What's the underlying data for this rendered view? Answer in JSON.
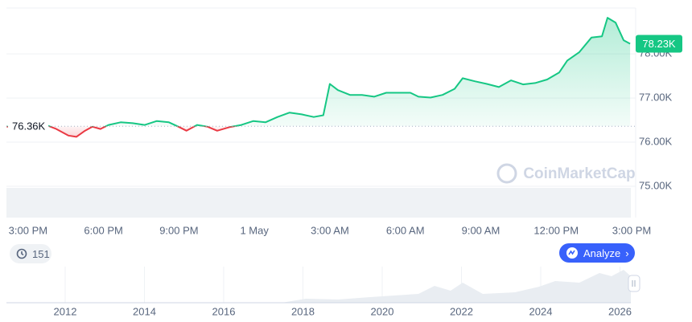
{
  "chart_data": {
    "type": "line",
    "x": [
      -0.86,
      -0.48,
      0.8,
      1.12,
      1.6,
      1.92,
      2.24,
      2.56,
      2.88,
      3.2,
      3.68,
      4.16,
      4.64,
      5.12,
      5.6,
      5.98,
      6.3,
      6.72,
      7.14,
      7.52,
      8,
      8.48,
      8.96,
      9.44,
      9.92,
      10.4,
      10.88,
      11.36,
      11.74,
      12,
      12.32,
      12.8,
      13.28,
      13.76,
      14.24,
      14.72,
      15.2,
      15.52,
      16,
      16.48,
      16.96,
      17.28,
      17.76,
      18.24,
      18.72,
      19.2,
      19.68,
      20.16,
      20.64,
      21.12,
      21.44,
      21.92,
      22.4,
      22.82,
      23.04,
      23.36,
      23.68,
      23.94
    ],
    "series": [
      {
        "color": "#16c784",
        "negative_color": "#ea3943",
        "values": [
          76360,
          76300,
          76370,
          76300,
          76150,
          76120,
          76250,
          76350,
          76300,
          76390,
          76450,
          76430,
          76390,
          76480,
          76450,
          76350,
          76260,
          76390,
          76350,
          76260,
          76340,
          76390,
          76480,
          76450,
          76570,
          76670,
          76630,
          76570,
          76610,
          77320,
          77180,
          77070,
          77070,
          77030,
          77120,
          77120,
          77120,
          77030,
          77010,
          77070,
          77210,
          77450,
          77380,
          77320,
          77250,
          77400,
          77310,
          77340,
          77420,
          77580,
          77850,
          78040,
          78370,
          78400,
          78820,
          78710,
          78310,
          78230
        ]
      }
    ],
    "baseline": {
      "value": 76360,
      "label": "76.36K"
    },
    "current_price": {
      "value": 78230,
      "label": "78.23K"
    },
    "xlim": [
      -0.86,
      24.16
    ],
    "xticks": [
      {
        "value": 0,
        "label": "3:00 PM"
      },
      {
        "value": 3,
        "label": "6:00 PM"
      },
      {
        "value": 6,
        "label": "9:00 PM"
      },
      {
        "value": 9,
        "label": "1 May"
      },
      {
        "value": 12,
        "label": "3:00 AM"
      },
      {
        "value": 15,
        "label": "6:00 AM"
      },
      {
        "value": 18,
        "label": "9:00 AM"
      },
      {
        "value": 21,
        "label": "12:00 PM"
      },
      {
        "value": 24,
        "label": "3:00 PM"
      }
    ],
    "ylim": [
      74290,
      79040
    ],
    "yticks": [
      {
        "value": 75000,
        "label": "75.00K"
      },
      {
        "value": 76000,
        "label": "76.00K"
      },
      {
        "value": 77000,
        "label": "77.00K"
      },
      {
        "value": 78000,
        "label": "78.00K"
      }
    ],
    "grid": true,
    "watermark": "CoinMarketCap",
    "history_count": "151",
    "analyze_button": "Analyze",
    "navigator_years": [
      "2012",
      "2014",
      "2016",
      "2018",
      "2020",
      "2022",
      "2024",
      "2026"
    ]
  }
}
